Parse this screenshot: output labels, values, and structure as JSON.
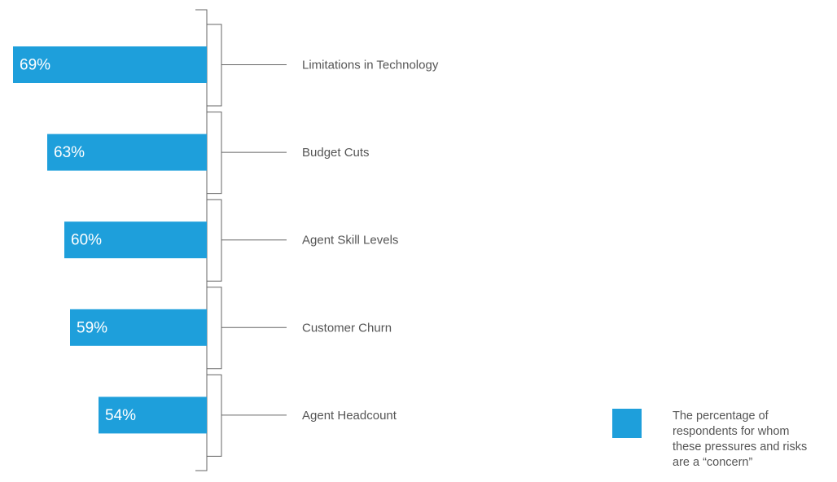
{
  "chart_data": {
    "type": "bar",
    "categories": [
      "Limitations in Technology",
      "Budget Cuts",
      "Agent Skill Levels",
      "Customer Churn",
      "Agent Headcount"
    ],
    "series": [
      {
        "name": "The percentage of respondents for whom these pressures and risks are a “concern”",
        "color": "#1e9fdb",
        "values": [
          69,
          63,
          60,
          59,
          54
        ],
        "value_labels": [
          "69%",
          "63%",
          "60%",
          "59%",
          "54%"
        ]
      }
    ],
    "xlim": [
      35,
      70
    ]
  }
}
